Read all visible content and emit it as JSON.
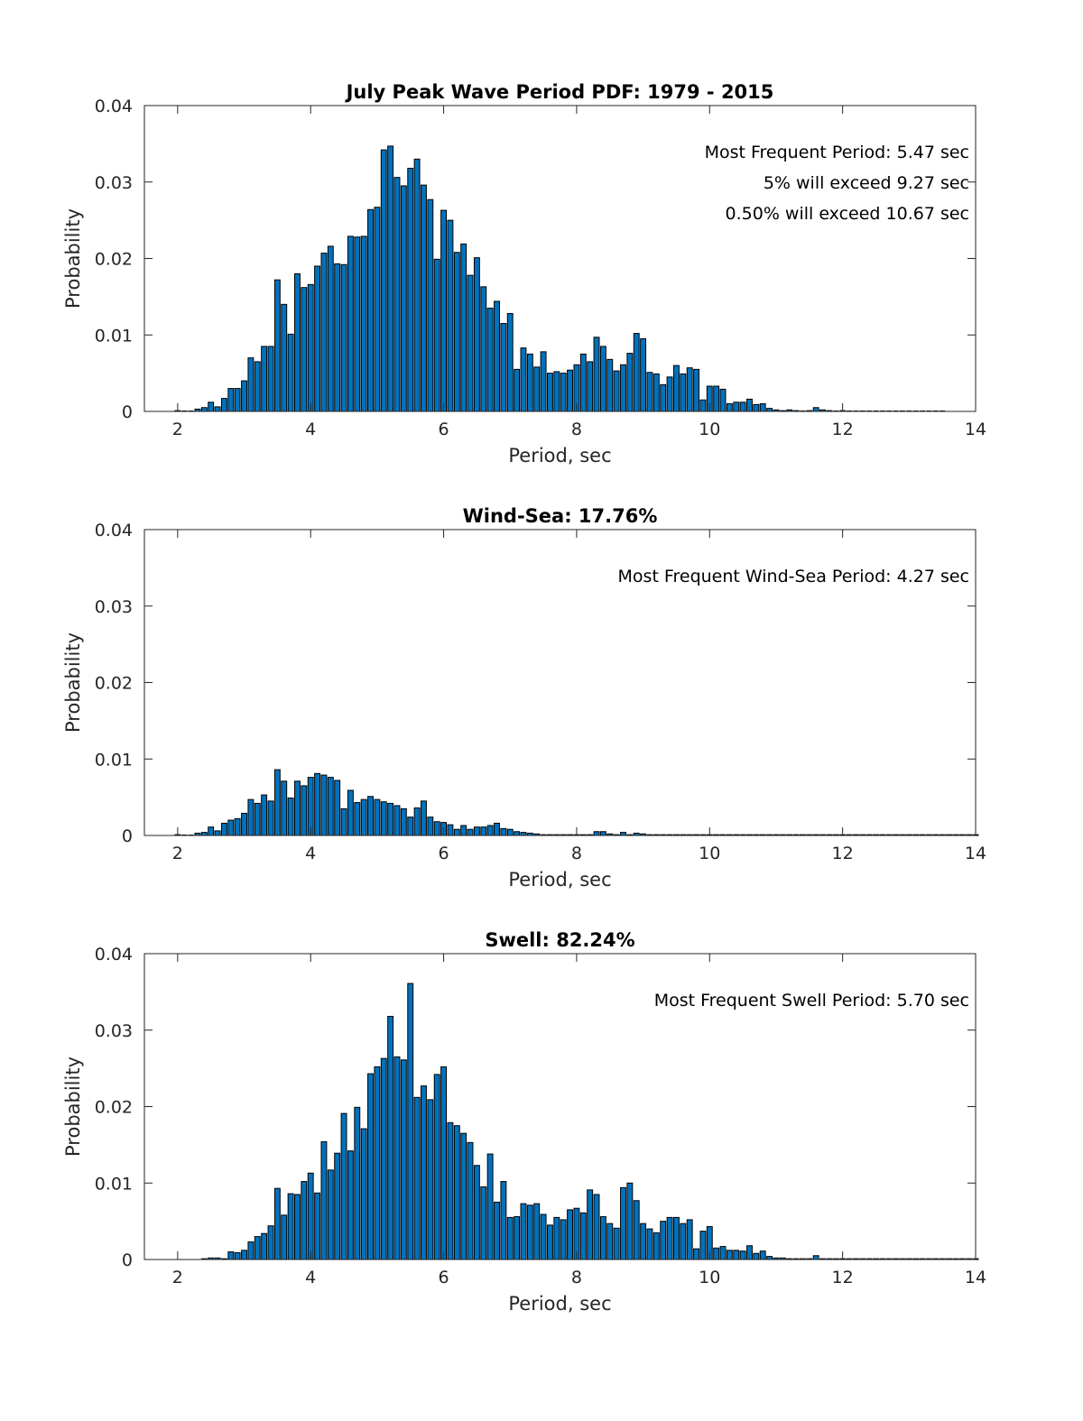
{
  "chart_data": [
    {
      "type": "bar",
      "title": "July Peak Wave Period PDF: 1979 - 2015",
      "xlabel": "Period, sec",
      "ylabel": "Probability",
      "xlim": [
        1.5,
        14
      ],
      "ylim": [
        0,
        0.04
      ],
      "xticks": [
        "2",
        "4",
        "6",
        "8",
        "10",
        "12",
        "14"
      ],
      "yticks": [
        "0",
        "0.01",
        "0.02",
        "0.03",
        "0.04"
      ],
      "bar_width": 0.08,
      "annotations": [
        "Most Frequent Period: 5.47 sec",
        "5% will exceed 9.27 sec",
        "0.50% will exceed 10.67 sec"
      ],
      "x": [
        2.0,
        2.1,
        2.2,
        2.3,
        2.4,
        2.5,
        2.6,
        2.7,
        2.8,
        2.9,
        3.0,
        3.1,
        3.2,
        3.3,
        3.4,
        3.5,
        3.6,
        3.7,
        3.8,
        3.9,
        4.0,
        4.1,
        4.2,
        4.3,
        4.4,
        4.5,
        4.6,
        4.7,
        4.8,
        4.9,
        5.0,
        5.1,
        5.2,
        5.3,
        5.4,
        5.5,
        5.6,
        5.7,
        5.8,
        5.9,
        6.0,
        6.1,
        6.2,
        6.3,
        6.4,
        6.5,
        6.6,
        6.7,
        6.8,
        6.9,
        7.0,
        7.1,
        7.2,
        7.3,
        7.4,
        7.5,
        7.6,
        7.7,
        7.8,
        7.9,
        8.0,
        8.1,
        8.2,
        8.3,
        8.4,
        8.5,
        8.6,
        8.7,
        8.8,
        8.9,
        9.0,
        9.1,
        9.2,
        9.3,
        9.4,
        9.5,
        9.6,
        9.7,
        9.8,
        9.9,
        10.0,
        10.1,
        10.2,
        10.3,
        10.4,
        10.5,
        10.6,
        10.7,
        10.8,
        10.9,
        11.0,
        11.1,
        11.2,
        11.3,
        11.4,
        11.5,
        11.6,
        11.7,
        11.8,
        11.9,
        12.0,
        12.1,
        12.2,
        12.3,
        12.4,
        12.5,
        12.6,
        12.7,
        12.8,
        12.9,
        13.0,
        13.1,
        13.2,
        13.3,
        13.4,
        13.5
      ],
      "values": [
        0.0001,
        0.0,
        0.0,
        0.0003,
        0.0005,
        0.0012,
        0.0006,
        0.0017,
        0.003,
        0.003,
        0.004,
        0.007,
        0.0065,
        0.0085,
        0.0085,
        0.0172,
        0.014,
        0.0101,
        0.018,
        0.0162,
        0.0166,
        0.019,
        0.0207,
        0.0216,
        0.0193,
        0.0192,
        0.0229,
        0.0228,
        0.0229,
        0.0264,
        0.0267,
        0.0342,
        0.0347,
        0.0306,
        0.0295,
        0.0318,
        0.033,
        0.0296,
        0.0277,
        0.0199,
        0.0263,
        0.025,
        0.0208,
        0.0219,
        0.0178,
        0.0201,
        0.0163,
        0.0135,
        0.0144,
        0.0115,
        0.0128,
        0.0055,
        0.0083,
        0.0075,
        0.0058,
        0.0078,
        0.005,
        0.0052,
        0.005,
        0.0054,
        0.0061,
        0.0075,
        0.0065,
        0.0097,
        0.0085,
        0.0068,
        0.0053,
        0.0061,
        0.0076,
        0.0102,
        0.0095,
        0.0051,
        0.0049,
        0.0035,
        0.0045,
        0.006,
        0.0049,
        0.0057,
        0.0055,
        0.0015,
        0.0033,
        0.0033,
        0.0029,
        0.001,
        0.0012,
        0.0012,
        0.0016,
        0.0009,
        0.001,
        0.0004,
        0.0002,
        0.0001,
        0.0002,
        0.0001,
        0.0,
        0.0001,
        0.0005,
        0.0002,
        0.0001,
        0.0,
        0.0001,
        0.0,
        0.0,
        0.0,
        0.0,
        0.0,
        0.0,
        0.0,
        0.0,
        0.0,
        0.0,
        0.0,
        0.0,
        0.0,
        0.0,
        0.0
      ]
    },
    {
      "type": "bar",
      "title": "Wind-Sea: 17.76%",
      "xlabel": "Period, sec",
      "ylabel": "Probability",
      "xlim": [
        1.5,
        14
      ],
      "ylim": [
        0,
        0.04
      ],
      "xticks": [
        "2",
        "4",
        "6",
        "8",
        "10",
        "12",
        "14"
      ],
      "yticks": [
        "0",
        "0.01",
        "0.02",
        "0.03",
        "0.04"
      ],
      "bar_width": 0.08,
      "annotations": [
        "Most Frequent Wind-Sea Period: 4.27 sec"
      ],
      "x": [
        2.0,
        2.1,
        2.2,
        2.3,
        2.4,
        2.5,
        2.6,
        2.7,
        2.8,
        2.9,
        3.0,
        3.1,
        3.2,
        3.3,
        3.4,
        3.5,
        3.6,
        3.7,
        3.8,
        3.9,
        4.0,
        4.1,
        4.2,
        4.3,
        4.4,
        4.5,
        4.6,
        4.7,
        4.8,
        4.9,
        5.0,
        5.1,
        5.2,
        5.3,
        5.4,
        5.5,
        5.6,
        5.7,
        5.8,
        5.9,
        6.0,
        6.1,
        6.2,
        6.3,
        6.4,
        6.5,
        6.6,
        6.7,
        6.8,
        6.9,
        7.0,
        7.1,
        7.2,
        7.3,
        7.4,
        7.5,
        7.6,
        7.7,
        7.8,
        7.9,
        8.0,
        8.1,
        8.2,
        8.3,
        8.4,
        8.5,
        8.6,
        8.7,
        8.8,
        8.9,
        9.0,
        9.1,
        9.2,
        9.3,
        9.4,
        9.5,
        9.6,
        9.7,
        9.8,
        9.9,
        10.0,
        10.1,
        10.2,
        10.3,
        10.4,
        10.5,
        10.6,
        10.7,
        10.8,
        10.9,
        11.0,
        11.1,
        11.2,
        11.3,
        11.4,
        11.5,
        11.6,
        11.7,
        11.8,
        11.9,
        12.0,
        12.1,
        12.2,
        12.3,
        12.4,
        12.5,
        12.6,
        12.7,
        12.8,
        12.9,
        13.0,
        13.1,
        13.2,
        13.3,
        13.4,
        13.5,
        13.6,
        13.7,
        13.8,
        13.9,
        14.0
      ],
      "values": [
        0.0001,
        0.0,
        0.0,
        0.0003,
        0.0004,
        0.0011,
        0.0006,
        0.0016,
        0.002,
        0.0022,
        0.0029,
        0.0047,
        0.0042,
        0.0053,
        0.0045,
        0.0086,
        0.0071,
        0.0049,
        0.0071,
        0.0065,
        0.0076,
        0.0081,
        0.0079,
        0.0076,
        0.0072,
        0.0035,
        0.0059,
        0.0043,
        0.0047,
        0.0051,
        0.0047,
        0.0044,
        0.0042,
        0.0039,
        0.0035,
        0.0024,
        0.0036,
        0.0045,
        0.0024,
        0.0018,
        0.0017,
        0.0014,
        0.0008,
        0.0013,
        0.0008,
        0.0011,
        0.0011,
        0.0013,
        0.0016,
        0.0009,
        0.0008,
        0.0005,
        0.0004,
        0.0003,
        0.0002,
        0.0001,
        0.0001,
        0.0001,
        0.0001,
        0.0001,
        0.0001,
        0.0001,
        0.0001,
        0.0005,
        0.0005,
        0.0002,
        0.0001,
        0.0004,
        0.0001,
        0.0003,
        0.0002,
        0.0001,
        0.0001,
        0.0001,
        0.0001,
        0.0001,
        0.0001,
        0.0001,
        0.0001,
        0.0001,
        0.0001,
        0.0001,
        0.0001,
        0.0001,
        0.0001,
        0.0001,
        0.0001,
        0.0001,
        0.0001,
        0.0001,
        0.0001,
        0.0001,
        0.0001,
        0.0001,
        0.0001,
        0.0001,
        0.0001,
        0.0001,
        0.0001,
        0.0001,
        0.0001,
        0.0001,
        0.0001,
        0.0001,
        0.0001,
        0.0001,
        0.0001,
        0.0001,
        0.0001,
        0.0001,
        0.0001,
        0.0001,
        0.0001,
        0.0001,
        0.0001,
        0.0001,
        0.0001,
        0.0001,
        0.0001,
        0.0001,
        0.0001
      ]
    },
    {
      "type": "bar",
      "title": "Swell: 82.24%",
      "xlabel": "Period, sec",
      "ylabel": "Probability",
      "xlim": [
        1.5,
        14
      ],
      "ylim": [
        0,
        0.04
      ],
      "xticks": [
        "2",
        "4",
        "6",
        "8",
        "10",
        "12",
        "14"
      ],
      "yticks": [
        "0",
        "0.01",
        "0.02",
        "0.03",
        "0.04"
      ],
      "bar_width": 0.08,
      "annotations": [
        "Most Frequent Swell Period: 5.70 sec"
      ],
      "x": [
        2.4,
        2.5,
        2.6,
        2.7,
        2.8,
        2.9,
        3.0,
        3.1,
        3.2,
        3.3,
        3.4,
        3.5,
        3.6,
        3.7,
        3.8,
        3.9,
        4.0,
        4.1,
        4.2,
        4.3,
        4.4,
        4.5,
        4.6,
        4.7,
        4.8,
        4.9,
        5.0,
        5.1,
        5.2,
        5.3,
        5.4,
        5.5,
        5.6,
        5.7,
        5.8,
        5.9,
        6.0,
        6.1,
        6.2,
        6.3,
        6.4,
        6.5,
        6.6,
        6.7,
        6.8,
        6.9,
        7.0,
        7.1,
        7.2,
        7.3,
        7.4,
        7.5,
        7.6,
        7.7,
        7.8,
        7.9,
        8.0,
        8.1,
        8.2,
        8.3,
        8.4,
        8.5,
        8.6,
        8.7,
        8.8,
        8.9,
        9.0,
        9.1,
        9.2,
        9.3,
        9.4,
        9.5,
        9.6,
        9.7,
        9.8,
        9.9,
        10.0,
        10.1,
        10.2,
        10.3,
        10.4,
        10.5,
        10.6,
        10.7,
        10.8,
        10.9,
        11.0,
        11.1,
        11.2,
        11.3,
        11.4,
        11.5,
        11.6,
        11.7,
        11.8,
        11.9,
        12.0,
        12.1,
        12.2,
        12.3,
        12.4,
        12.5,
        12.6,
        12.7,
        12.8,
        12.9,
        13.0,
        13.1,
        13.2,
        13.3,
        13.4,
        13.5,
        13.6,
        13.7,
        13.8,
        13.9,
        14.0
      ],
      "values": [
        0.0001,
        0.0002,
        0.0002,
        0.0001,
        0.001,
        0.0009,
        0.0012,
        0.0023,
        0.003,
        0.0034,
        0.0044,
        0.0093,
        0.0058,
        0.0086,
        0.0085,
        0.0102,
        0.0113,
        0.0087,
        0.0154,
        0.0117,
        0.0139,
        0.0191,
        0.0142,
        0.0199,
        0.0171,
        0.0243,
        0.0252,
        0.0263,
        0.0318,
        0.0265,
        0.0261,
        0.0361,
        0.0212,
        0.0227,
        0.0209,
        0.0242,
        0.0252,
        0.0179,
        0.0175,
        0.0165,
        0.0153,
        0.0123,
        0.0095,
        0.0138,
        0.0075,
        0.0102,
        0.0055,
        0.0056,
        0.0073,
        0.0071,
        0.0073,
        0.0059,
        0.0045,
        0.0055,
        0.0052,
        0.0065,
        0.0067,
        0.0061,
        0.0091,
        0.0085,
        0.0056,
        0.0047,
        0.0041,
        0.0094,
        0.01,
        0.0077,
        0.0047,
        0.004,
        0.0035,
        0.005,
        0.0055,
        0.0055,
        0.0047,
        0.0052,
        0.0014,
        0.0037,
        0.0043,
        0.0015,
        0.0017,
        0.0012,
        0.0012,
        0.0011,
        0.0018,
        0.0008,
        0.0011,
        0.0004,
        0.0002,
        0.0002,
        0.0001,
        0.0001,
        0.0001,
        0.0001,
        0.0005,
        0.0001,
        0.0001,
        0.0001,
        0.0001,
        0.0001,
        0.0001,
        0.0001,
        0.0001,
        0.0001,
        0.0001,
        0.0001,
        0.0001,
        0.0001,
        0.0001,
        0.0001,
        0.0001,
        0.0001,
        0.0001,
        0.0001,
        0.0001,
        0.0001,
        0.0001,
        0.0001,
        0.0001
      ]
    }
  ]
}
